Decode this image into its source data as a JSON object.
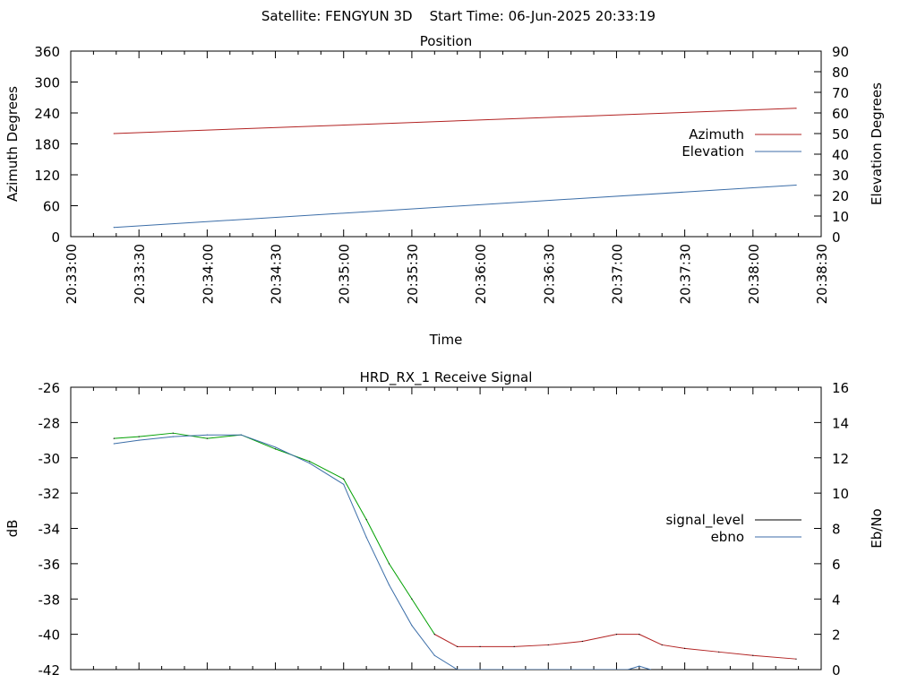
{
  "header": {
    "title": "Satellite: FENGYUN 3D    Start Time: 06-Jun-2025 20:33:19"
  },
  "chart_data": [
    {
      "type": "line",
      "title": "Position",
      "xlabel": "Time",
      "ylabel": "Azimuth Degrees",
      "y2label": "Elevation Degrees",
      "x_ticks": [
        "20:33:00",
        "20:33:30",
        "20:34:00",
        "20:34:30",
        "20:35:00",
        "20:35:30",
        "20:36:00",
        "20:36:30",
        "20:37:00",
        "20:37:30",
        "20:38:00",
        "20:38:30"
      ],
      "xlim": [
        "20:33:00",
        "20:38:30"
      ],
      "ylim": [
        0,
        360
      ],
      "y_ticks": [
        "0",
        "60",
        "120",
        "180",
        "240",
        "300",
        "360"
      ],
      "y2lim": [
        0,
        90
      ],
      "y2_ticks": [
        "0",
        "10",
        "20",
        "30",
        "40",
        "50",
        "60",
        "70",
        "80",
        "90"
      ],
      "grid": false,
      "legend_position": "right",
      "series": [
        {
          "name": "Azimuth",
          "axis": "y",
          "color": "#b22222",
          "x": [
            "20:33:19",
            "20:38:19"
          ],
          "values": [
            200,
            249
          ]
        },
        {
          "name": "Elevation",
          "axis": "y2",
          "color": "#3c6ea8",
          "x": [
            "20:33:19",
            "20:38:19"
          ],
          "values": [
            4.5,
            25
          ]
        }
      ]
    },
    {
      "type": "line",
      "title": "HRD_RX_1 Receive Signal",
      "xlabel": "",
      "ylabel": "dB",
      "y2label": "Eb/No",
      "xlim": [
        "20:33:00",
        "20:38:30"
      ],
      "ylim": [
        -42,
        -26
      ],
      "y_ticks": [
        "-42",
        "-40",
        "-38",
        "-36",
        "-34",
        "-32",
        "-30",
        "-28",
        "-26"
      ],
      "y2lim": [
        0,
        16
      ],
      "y2_ticks": [
        "0",
        "2",
        "4",
        "6",
        "8",
        "10",
        "12",
        "14",
        "16"
      ],
      "grid": false,
      "legend_position": "right",
      "series": [
        {
          "name": "signal_level",
          "axis": "y",
          "color": "#000000",
          "segment_colors": {
            "above_threshold": "#00a000",
            "below_threshold": "#b22222",
            "threshold": -39.5
          },
          "x": [
            "20:33:19",
            "20:33:30",
            "20:33:45",
            "20:34:00",
            "20:34:15",
            "20:34:30",
            "20:34:45",
            "20:35:00",
            "20:35:10",
            "20:35:20",
            "20:35:30",
            "20:35:40",
            "20:35:50",
            "20:36:00",
            "20:36:15",
            "20:36:30",
            "20:36:45",
            "20:37:00",
            "20:37:10",
            "20:37:20",
            "20:37:30",
            "20:37:45",
            "20:38:00",
            "20:38:19"
          ],
          "values": [
            -28.9,
            -28.8,
            -28.6,
            -28.9,
            -28.7,
            -29.5,
            -30.2,
            -31.2,
            -33.5,
            -36.0,
            -38.0,
            -40.0,
            -40.7,
            -40.7,
            -40.7,
            -40.6,
            -40.4,
            -40.0,
            -40.0,
            -40.6,
            -40.8,
            -41.0,
            -41.2,
            -41.4
          ]
        },
        {
          "name": "ebno",
          "axis": "y2",
          "color": "#3c6ea8",
          "x": [
            "20:33:19",
            "20:33:30",
            "20:33:45",
            "20:34:00",
            "20:34:15",
            "20:34:30",
            "20:34:45",
            "20:35:00",
            "20:35:10",
            "20:35:20",
            "20:35:30",
            "20:35:40",
            "20:35:50",
            "20:37:05",
            "20:37:10",
            "20:37:15"
          ],
          "values": [
            12.8,
            13.0,
            13.2,
            13.3,
            13.3,
            12.6,
            11.7,
            10.5,
            7.5,
            4.8,
            2.5,
            0.8,
            0.0,
            0.0,
            0.2,
            0.0
          ]
        }
      ]
    }
  ]
}
